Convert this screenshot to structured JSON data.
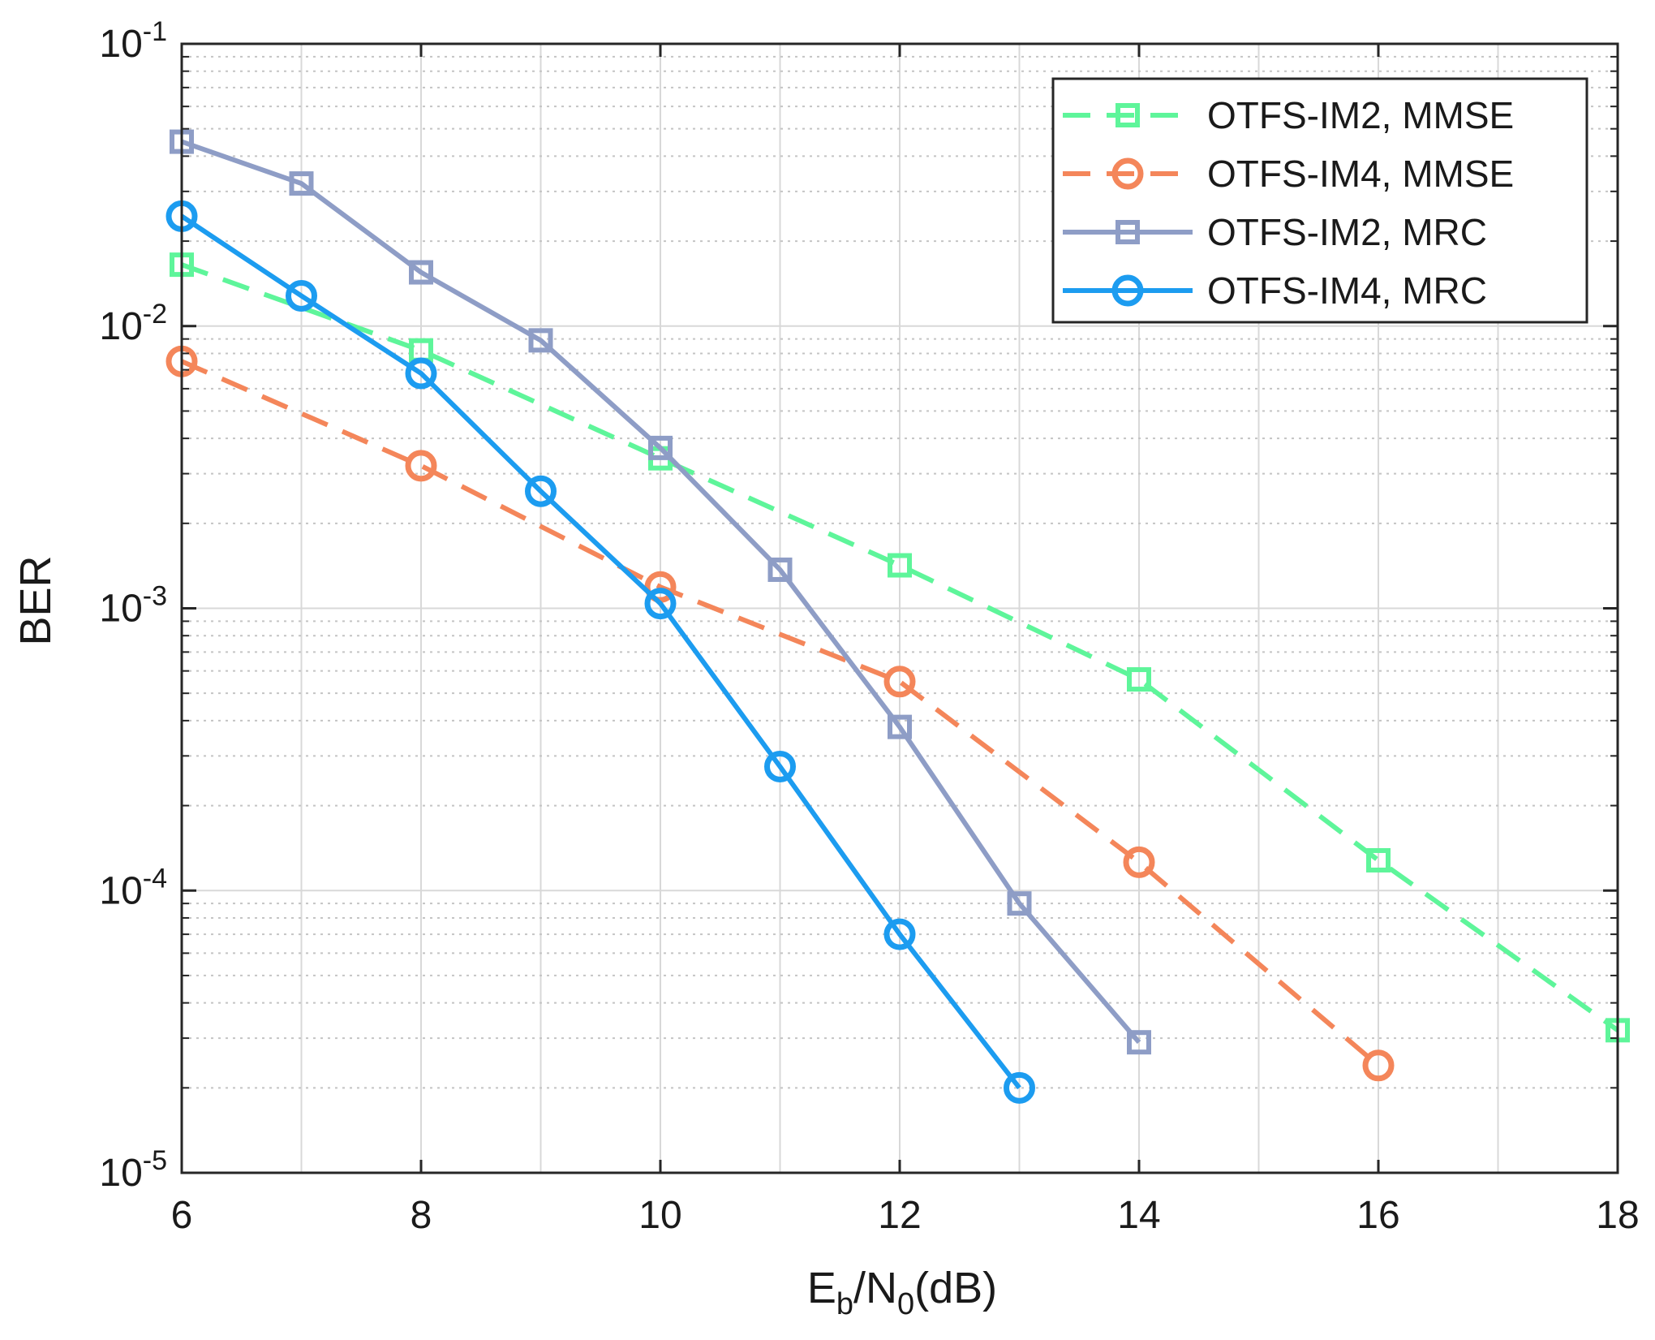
{
  "chart_data": {
    "type": "line",
    "title": "",
    "xlabel": {
      "main": "E",
      "sub1": "b",
      "mid": "/N",
      "sub2": "0",
      "tail": "(dB)"
    },
    "ylabel": "BER",
    "xlim": [
      6,
      18
    ],
    "ylim": [
      1e-05,
      0.1
    ],
    "yscale": "log",
    "grid": true,
    "legend_position": "top-right",
    "x_ticks": [
      6,
      8,
      10,
      12,
      14,
      16,
      18
    ],
    "x_tick_labels": [
      "6",
      "8",
      "10",
      "12",
      "14",
      "16",
      "18"
    ],
    "y_ticks": [
      1e-05,
      0.0001,
      0.001,
      0.01,
      0.1
    ],
    "y_tick_labels": [
      {
        "base": "10",
        "exp": "-5"
      },
      {
        "base": "10",
        "exp": "-4"
      },
      {
        "base": "10",
        "exp": "-3"
      },
      {
        "base": "10",
        "exp": "-2"
      },
      {
        "base": "10",
        "exp": "-1"
      }
    ],
    "series": [
      {
        "name": "OTFS-IM2, MMSE",
        "color": "#5ef59a",
        "dash": "dashed",
        "marker": "square",
        "x": [
          6,
          8,
          10,
          12,
          14,
          16,
          18
        ],
        "y": [
          0.0165,
          0.0082,
          0.0034,
          0.00142,
          0.00056,
          0.000128,
          3.2e-05
        ]
      },
      {
        "name": "OTFS-IM4, MMSE",
        "color": "#f4865a",
        "dash": "dashed",
        "marker": "circle",
        "x": [
          6,
          8,
          10,
          12,
          14,
          16
        ],
        "y": [
          0.0075,
          0.0032,
          0.00119,
          0.00055,
          0.000126,
          2.4e-05
        ]
      },
      {
        "name": "OTFS-IM2, MRC",
        "color": "#8e9dc6",
        "dash": "solid",
        "marker": "square",
        "x": [
          6,
          7,
          8,
          9,
          10,
          11,
          12,
          13,
          14
        ],
        "y": [
          0.045,
          0.032,
          0.0155,
          0.0089,
          0.0037,
          0.00137,
          0.00038,
          9e-05,
          2.9e-05
        ]
      },
      {
        "name": "OTFS-IM4, MRC",
        "color": "#1c9cf0",
        "dash": "solid",
        "marker": "circle",
        "x": [
          6,
          7,
          8,
          9,
          10,
          11,
          12,
          13
        ],
        "y": [
          0.0245,
          0.0128,
          0.0068,
          0.0026,
          0.00104,
          0.000275,
          7e-05,
          2e-05
        ]
      }
    ]
  }
}
